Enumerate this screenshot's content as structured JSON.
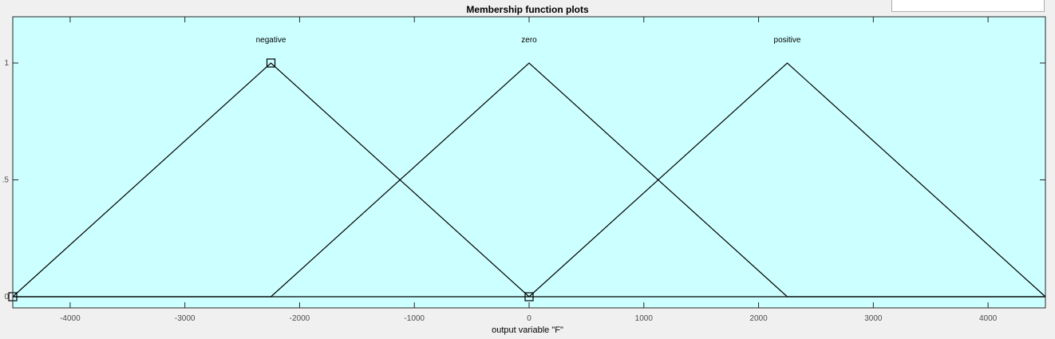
{
  "window": {
    "title": "Membership function plots"
  },
  "chart_data": {
    "type": "line",
    "title": "Membership function plots",
    "xlabel": "output variable \"F\"",
    "ylabel": "",
    "xlim": [
      -4500,
      4500
    ],
    "ylim": [
      0,
      1.2
    ],
    "x_ticks": [
      -4000,
      -3000,
      -2000,
      -1000,
      0,
      1000,
      2000,
      3000,
      4000
    ],
    "x_tick_labels": [
      "-4000",
      "-3000",
      "-2000",
      "-1000",
      "0",
      "1000",
      "2000",
      "3000",
      "4000"
    ],
    "y_ticks": [
      0,
      0.5,
      1
    ],
    "y_tick_labels": [
      "0",
      ".5",
      "1"
    ],
    "grid": false,
    "background_color": "#ccffff",
    "line_color": "#000000",
    "series": [
      {
        "name": "negative",
        "shape": "trimf",
        "points": [
          [
            -4500,
            0
          ],
          [
            -2250,
            1
          ],
          [
            0,
            0
          ]
        ]
      },
      {
        "name": "zero",
        "shape": "trimf",
        "points": [
          [
            -2250,
            0
          ],
          [
            0,
            1
          ],
          [
            2250,
            0
          ]
        ]
      },
      {
        "name": "positive",
        "shape": "trimf",
        "points": [
          [
            0,
            0
          ],
          [
            2250,
            1
          ],
          [
            4500,
            0
          ]
        ]
      }
    ],
    "selected_series": "negative"
  }
}
